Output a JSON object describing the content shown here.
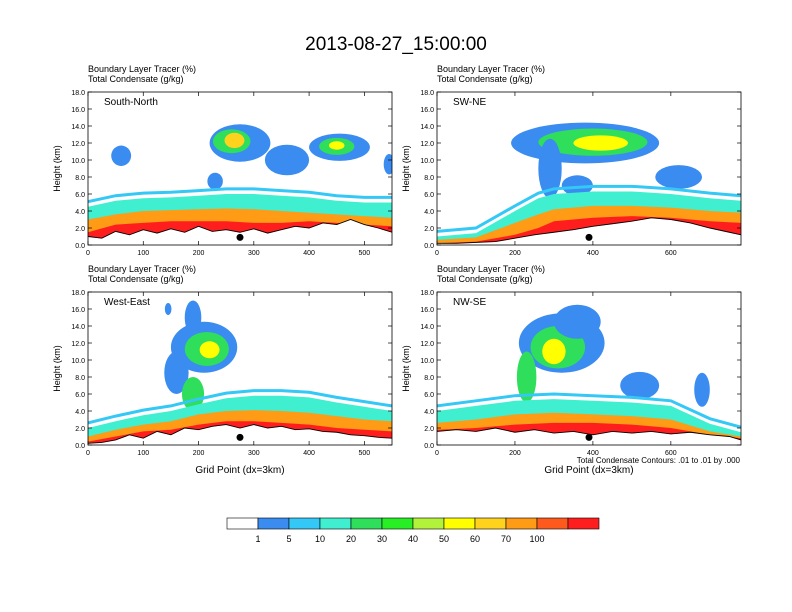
{
  "figure": {
    "title": "2013-08-27_15:00:00",
    "footnote": "Total Condensate Contours: .01 to .01 by .000"
  },
  "colorbar": {
    "labels": [
      "1",
      "5",
      "10",
      "20",
      "30",
      "40",
      "50",
      "60",
      "70",
      "100"
    ],
    "colors": [
      "#ffffff",
      "#3a8cf0",
      "#33c8f5",
      "#40efd0",
      "#2fde5a",
      "#28ee25",
      "#b3f23a",
      "#ffff00",
      "#ffd21e",
      "#ff9b14",
      "#ff5a1e",
      "#ff1e1e"
    ]
  },
  "chart_data": [
    {
      "type": "area",
      "title": "South-North",
      "header": [
        "Boundary Layer Tracer   (%)",
        "Total Condensate   (g/kg)"
      ],
      "xlabel": "",
      "ylabel": "Height (km)",
      "xlim": [
        0,
        550
      ],
      "ylim": [
        0,
        18
      ],
      "xticks": [
        "0",
        "100",
        "200",
        "300",
        "400",
        "500"
      ],
      "yticks": [
        "0.0",
        "2.0",
        "4.0",
        "6.0",
        "8.0",
        "10.0",
        "12.0",
        "14.0",
        "16.0",
        "18.0"
      ],
      "marker_x": 275,
      "series": [
        {
          "name": "BL tracer 5% top (km)",
          "x": [
            0,
            50,
            100,
            150,
            200,
            250,
            300,
            350,
            400,
            450,
            500,
            550
          ],
          "values": [
            4.5,
            5.2,
            5.5,
            5.6,
            5.8,
            6.0,
            6.0,
            5.8,
            5.6,
            5.2,
            5.0,
            5.0
          ]
        },
        {
          "name": "BL tracer 50% top (km)",
          "x": [
            0,
            50,
            100,
            150,
            200,
            250,
            300,
            350,
            400,
            450,
            500,
            550
          ],
          "values": [
            3.0,
            3.6,
            4.0,
            4.1,
            4.2,
            4.3,
            4.2,
            4.0,
            3.8,
            3.6,
            3.4,
            3.2
          ]
        },
        {
          "name": "BL tracer 90% top (km)",
          "x": [
            0,
            50,
            100,
            150,
            200,
            250,
            300,
            350,
            400,
            450,
            500,
            550
          ],
          "values": [
            1.5,
            2.4,
            2.6,
            2.8,
            2.8,
            2.8,
            2.6,
            2.6,
            2.8,
            2.6,
            2.4,
            2.2
          ]
        },
        {
          "name": "Terrain (km)",
          "x": [
            0,
            25,
            50,
            75,
            100,
            125,
            150,
            175,
            200,
            225,
            250,
            275,
            300,
            325,
            350,
            375,
            400,
            425,
            450,
            475,
            500,
            525,
            550
          ],
          "values": [
            1.0,
            0.8,
            1.6,
            1.2,
            1.8,
            1.4,
            1.9,
            1.5,
            2.2,
            1.6,
            1.8,
            1.5,
            1.9,
            1.4,
            1.8,
            2.2,
            2.0,
            2.6,
            2.4,
            3.0,
            2.4,
            2.0,
            1.5
          ]
        }
      ]
    },
    {
      "type": "area",
      "title": "SW-NE",
      "header": [
        "Boundary Layer Tracer   (%)",
        "Total Condensate   (g/kg)"
      ],
      "xlabel": "",
      "ylabel": "Height (km)",
      "xlim": [
        0,
        780
      ],
      "ylim": [
        0,
        18
      ],
      "xticks": [
        "0",
        "200",
        "400",
        "600"
      ],
      "yticks": [
        "0.0",
        "2.0",
        "4.0",
        "6.0",
        "8.0",
        "10.0",
        "12.0",
        "14.0",
        "16.0",
        "18.0"
      ],
      "marker_x": 390,
      "series": [
        {
          "name": "BL tracer 5% top (km)",
          "x": [
            0,
            100,
            200,
            260,
            300,
            400,
            500,
            600,
            700,
            780
          ],
          "values": [
            1.0,
            1.4,
            4.0,
            5.5,
            6.0,
            6.3,
            6.3,
            6.0,
            5.5,
            5.2
          ]
        },
        {
          "name": "BL tracer 50% top (km)",
          "x": [
            0,
            100,
            200,
            260,
            300,
            400,
            500,
            600,
            700,
            780
          ],
          "values": [
            0.6,
            0.9,
            2.6,
            3.6,
            4.2,
            4.6,
            4.6,
            4.4,
            4.0,
            3.8
          ]
        },
        {
          "name": "BL tracer 90% top (km)",
          "x": [
            0,
            100,
            200,
            260,
            300,
            400,
            500,
            600,
            700,
            780
          ],
          "values": [
            0.2,
            0.4,
            1.2,
            2.0,
            2.8,
            3.2,
            3.4,
            3.2,
            2.8,
            2.6
          ]
        },
        {
          "name": "Terrain (km)",
          "x": [
            0,
            50,
            100,
            150,
            200,
            250,
            300,
            350,
            400,
            450,
            500,
            550,
            600,
            650,
            700,
            750,
            780
          ],
          "values": [
            0.2,
            0.2,
            0.3,
            0.4,
            0.8,
            1.2,
            1.5,
            1.8,
            2.2,
            2.5,
            2.8,
            3.2,
            3.0,
            2.6,
            2.0,
            1.5,
            1.2
          ]
        }
      ]
    },
    {
      "type": "area",
      "title": "West-East",
      "header": [
        "Boundary Layer Tracer   (%)",
        "Total Condensate   (g/kg)"
      ],
      "xlabel": "Grid Point (dx=3km)",
      "ylabel": "Height (km)",
      "xlim": [
        0,
        550
      ],
      "ylim": [
        0,
        18
      ],
      "xticks": [
        "0",
        "100",
        "200",
        "300",
        "400",
        "500"
      ],
      "yticks": [
        "0.0",
        "2.0",
        "4.0",
        "6.0",
        "8.0",
        "10.0",
        "12.0",
        "14.0",
        "16.0",
        "18.0"
      ],
      "marker_x": 275,
      "series": [
        {
          "name": "BL tracer 5% top (km)",
          "x": [
            0,
            50,
            100,
            150,
            200,
            250,
            300,
            350,
            400,
            450,
            500,
            550
          ],
          "values": [
            2.0,
            2.8,
            3.5,
            4.0,
            4.8,
            5.5,
            5.8,
            5.8,
            5.6,
            5.0,
            4.5,
            4.0
          ]
        },
        {
          "name": "BL tracer 50% top (km)",
          "x": [
            0,
            50,
            100,
            150,
            200,
            250,
            300,
            350,
            400,
            450,
            500,
            550
          ],
          "values": [
            1.0,
            1.8,
            2.4,
            2.8,
            3.6,
            4.0,
            4.1,
            4.0,
            3.8,
            3.4,
            3.0,
            2.8
          ]
        },
        {
          "name": "BL tracer 90% top (km)",
          "x": [
            0,
            50,
            100,
            150,
            200,
            250,
            300,
            350,
            400,
            450,
            500,
            550
          ],
          "values": [
            0.4,
            1.0,
            1.6,
            1.8,
            2.4,
            2.8,
            2.8,
            2.6,
            2.4,
            2.0,
            1.8,
            1.6
          ]
        },
        {
          "name": "Terrain (km)",
          "x": [
            0,
            25,
            50,
            75,
            100,
            125,
            150,
            175,
            200,
            225,
            250,
            275,
            300,
            325,
            350,
            375,
            400,
            425,
            450,
            475,
            500,
            525,
            550
          ],
          "values": [
            0.2,
            0.3,
            0.6,
            1.2,
            0.8,
            1.6,
            1.2,
            2.0,
            1.8,
            2.2,
            2.4,
            2.0,
            2.4,
            2.0,
            2.2,
            1.8,
            1.9,
            1.6,
            1.5,
            1.2,
            1.1,
            0.9,
            0.8
          ]
        }
      ]
    },
    {
      "type": "area",
      "title": "NW-SE",
      "header": [
        "Boundary Layer Tracer   (%)",
        "Total Condensate   (g/kg)"
      ],
      "xlabel": "Grid Point (dx=3km)",
      "ylabel": "Height (km)",
      "xlim": [
        0,
        780
      ],
      "ylim": [
        0,
        18
      ],
      "xticks": [
        "0",
        "200",
        "400",
        "600"
      ],
      "yticks": [
        "0.0",
        "2.0",
        "4.0",
        "6.0",
        "8.0",
        "10.0",
        "12.0",
        "14.0",
        "16.0",
        "18.0"
      ],
      "marker_x": 390,
      "series": [
        {
          "name": "BL tracer 5% top (km)",
          "x": [
            0,
            100,
            200,
            300,
            400,
            500,
            600,
            700,
            780
          ],
          "values": [
            4.0,
            4.6,
            5.2,
            5.4,
            5.2,
            5.0,
            4.6,
            2.5,
            1.5
          ]
        },
        {
          "name": "BL tracer 50% top (km)",
          "x": [
            0,
            100,
            200,
            300,
            400,
            500,
            600,
            700,
            780
          ],
          "values": [
            2.6,
            3.0,
            3.6,
            3.8,
            3.6,
            3.4,
            3.0,
            1.6,
            1.0
          ]
        },
        {
          "name": "BL tracer 90% top (km)",
          "x": [
            0,
            100,
            200,
            300,
            400,
            500,
            600,
            700,
            780
          ],
          "values": [
            1.8,
            2.0,
            2.4,
            2.6,
            2.6,
            2.4,
            2.0,
            1.2,
            0.8
          ]
        },
        {
          "name": "Terrain (km)",
          "x": [
            0,
            50,
            100,
            150,
            200,
            250,
            300,
            350,
            400,
            450,
            500,
            550,
            600,
            650,
            700,
            750,
            780
          ],
          "values": [
            1.6,
            1.8,
            1.6,
            2.0,
            1.5,
            1.8,
            1.4,
            1.6,
            1.2,
            1.6,
            1.4,
            1.6,
            1.3,
            1.5,
            1.2,
            1.0,
            0.6
          ]
        }
      ]
    }
  ]
}
